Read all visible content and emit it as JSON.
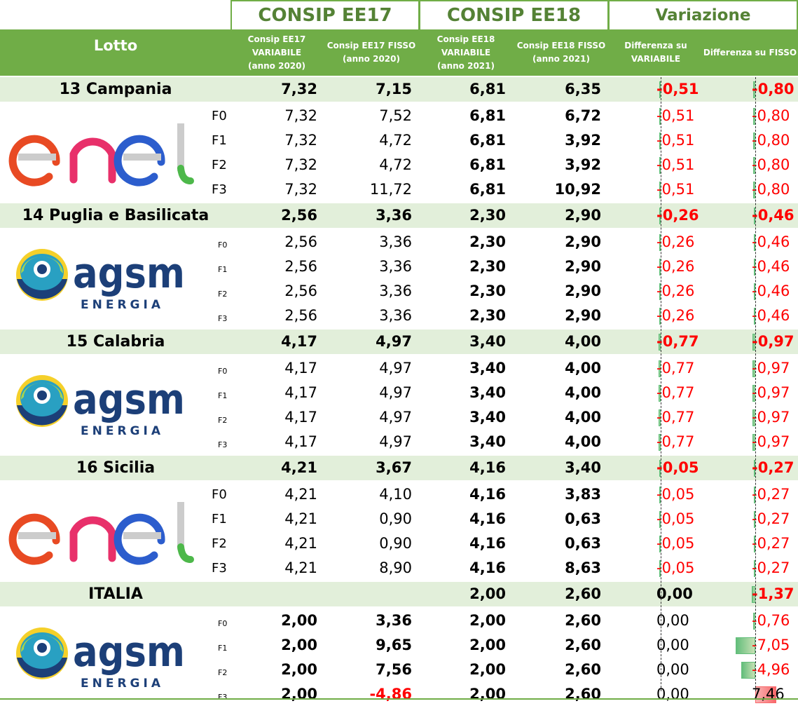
{
  "headers": {
    "ee17": "CONSIP EE17",
    "ee18": "CONSIP EE18",
    "variazione": "Variazione",
    "lotto": "Lotto",
    "columns": [
      "Consip EE17\nVARIABILE\n(anno 2020)",
      "Consip EE17 FISSO\n(anno 2020)",
      "Consip EE18\nVARIABILE\n(anno 2021)",
      "Consip EE18 FISSO\n(anno 2021)",
      "Differenza su\nVARIABILE",
      "Differenza su FISSO"
    ]
  },
  "groups": [
    {
      "name": "13 Campania",
      "logo": "enel",
      "band_style": "large",
      "total": [
        "7,32",
        "7,15",
        "6,81",
        "6,35",
        "-0,51",
        "-0,80"
      ],
      "bands": [
        {
          "label": "F0",
          "values": [
            "7,32",
            "7,52",
            "6,81",
            "6,72",
            "-0,51",
            "-0,80"
          ]
        },
        {
          "label": "F1",
          "values": [
            "7,32",
            "4,72",
            "6,81",
            "3,92",
            "-0,51",
            "-0,80"
          ]
        },
        {
          "label": "F2",
          "values": [
            "7,32",
            "4,72",
            "6,81",
            "3,92",
            "-0,51",
            "-0,80"
          ]
        },
        {
          "label": "F3",
          "values": [
            "7,32",
            "11,72",
            "6,81",
            "10,92",
            "-0,51",
            "-0,80"
          ]
        }
      ]
    },
    {
      "name": "14 Puglia e Basilicata",
      "logo": "agsm",
      "band_style": "small",
      "total": [
        "2,56",
        "3,36",
        "2,30",
        "2,90",
        "-0,26",
        "-0,46"
      ],
      "bands": [
        {
          "label": "F0",
          "values": [
            "2,56",
            "3,36",
            "2,30",
            "2,90",
            "-0,26",
            "-0,46"
          ]
        },
        {
          "label": "F1",
          "values": [
            "2,56",
            "3,36",
            "2,30",
            "2,90",
            "-0,26",
            "-0,46"
          ]
        },
        {
          "label": "F2",
          "values": [
            "2,56",
            "3,36",
            "2,30",
            "2,90",
            "-0,26",
            "-0,46"
          ]
        },
        {
          "label": "F3",
          "values": [
            "2,56",
            "3,36",
            "2,30",
            "2,90",
            "-0,26",
            "-0,46"
          ]
        }
      ]
    },
    {
      "name": "15 Calabria",
      "logo": "agsm",
      "band_style": "small",
      "total": [
        "4,17",
        "4,97",
        "3,40",
        "4,00",
        "-0,77",
        "-0,97"
      ],
      "bands": [
        {
          "label": "F0",
          "values": [
            "4,17",
            "4,97",
            "3,40",
            "4,00",
            "-0,77",
            "-0,97"
          ]
        },
        {
          "label": "F1",
          "values": [
            "4,17",
            "4,97",
            "3,40",
            "4,00",
            "-0,77",
            "-0,97"
          ]
        },
        {
          "label": "F2",
          "values": [
            "4,17",
            "4,97",
            "3,40",
            "4,00",
            "-0,77",
            "-0,97"
          ]
        },
        {
          "label": "F3",
          "values": [
            "4,17",
            "4,97",
            "3,40",
            "4,00",
            "-0,77",
            "-0,97"
          ]
        }
      ]
    },
    {
      "name": "16 Sicilia",
      "logo": "enel",
      "band_style": "large",
      "total": [
        "4,21",
        "3,67",
        "4,16",
        "3,40",
        "-0,05",
        "-0,27"
      ],
      "bands": [
        {
          "label": "F0",
          "values": [
            "4,21",
            "4,10",
            "4,16",
            "3,83",
            "-0,05",
            "-0,27"
          ]
        },
        {
          "label": "F1",
          "values": [
            "4,21",
            "0,90",
            "4,16",
            "0,63",
            "-0,05",
            "-0,27"
          ]
        },
        {
          "label": "F2",
          "values": [
            "4,21",
            "0,90",
            "4,16",
            "0,63",
            "-0,05",
            "-0,27"
          ]
        },
        {
          "label": "F3",
          "values": [
            "4,21",
            "8,90",
            "4,16",
            "8,63",
            "-0,05",
            "-0,27"
          ]
        }
      ]
    },
    {
      "name": "ITALIA",
      "logo": "agsm",
      "band_style": "small",
      "total": [
        "",
        "",
        "2,00",
        "2,60",
        "0,00",
        "-1,37"
      ],
      "bands": [
        {
          "label": "F0",
          "values": [
            "2,00",
            "3,36",
            "2,00",
            "2,60",
            "0,00",
            "-0,76"
          ]
        },
        {
          "label": "F1",
          "values": [
            "2,00",
            "9,65",
            "2,00",
            "2,60",
            "0,00",
            "-7,05"
          ]
        },
        {
          "label": "F2",
          "values": [
            "2,00",
            "7,56",
            "2,00",
            "2,60",
            "0,00",
            "-4,96"
          ]
        },
        {
          "label": "F3",
          "values": [
            "2,00",
            "-4,86",
            "2,00",
            "2,60",
            "0,00",
            "7,46"
          ]
        }
      ]
    }
  ],
  "logos": {
    "enel": {
      "text": "enel"
    },
    "agsm": {
      "text": "agsm",
      "subtext": "ENERGIA"
    }
  },
  "colors": {
    "accent_green": "#70ad47",
    "header_text": "#548235",
    "region_fill": "#e2efda",
    "negative": "#ff0000",
    "bar_positive": "#63be7b",
    "bar_negative": "#f8696b"
  }
}
